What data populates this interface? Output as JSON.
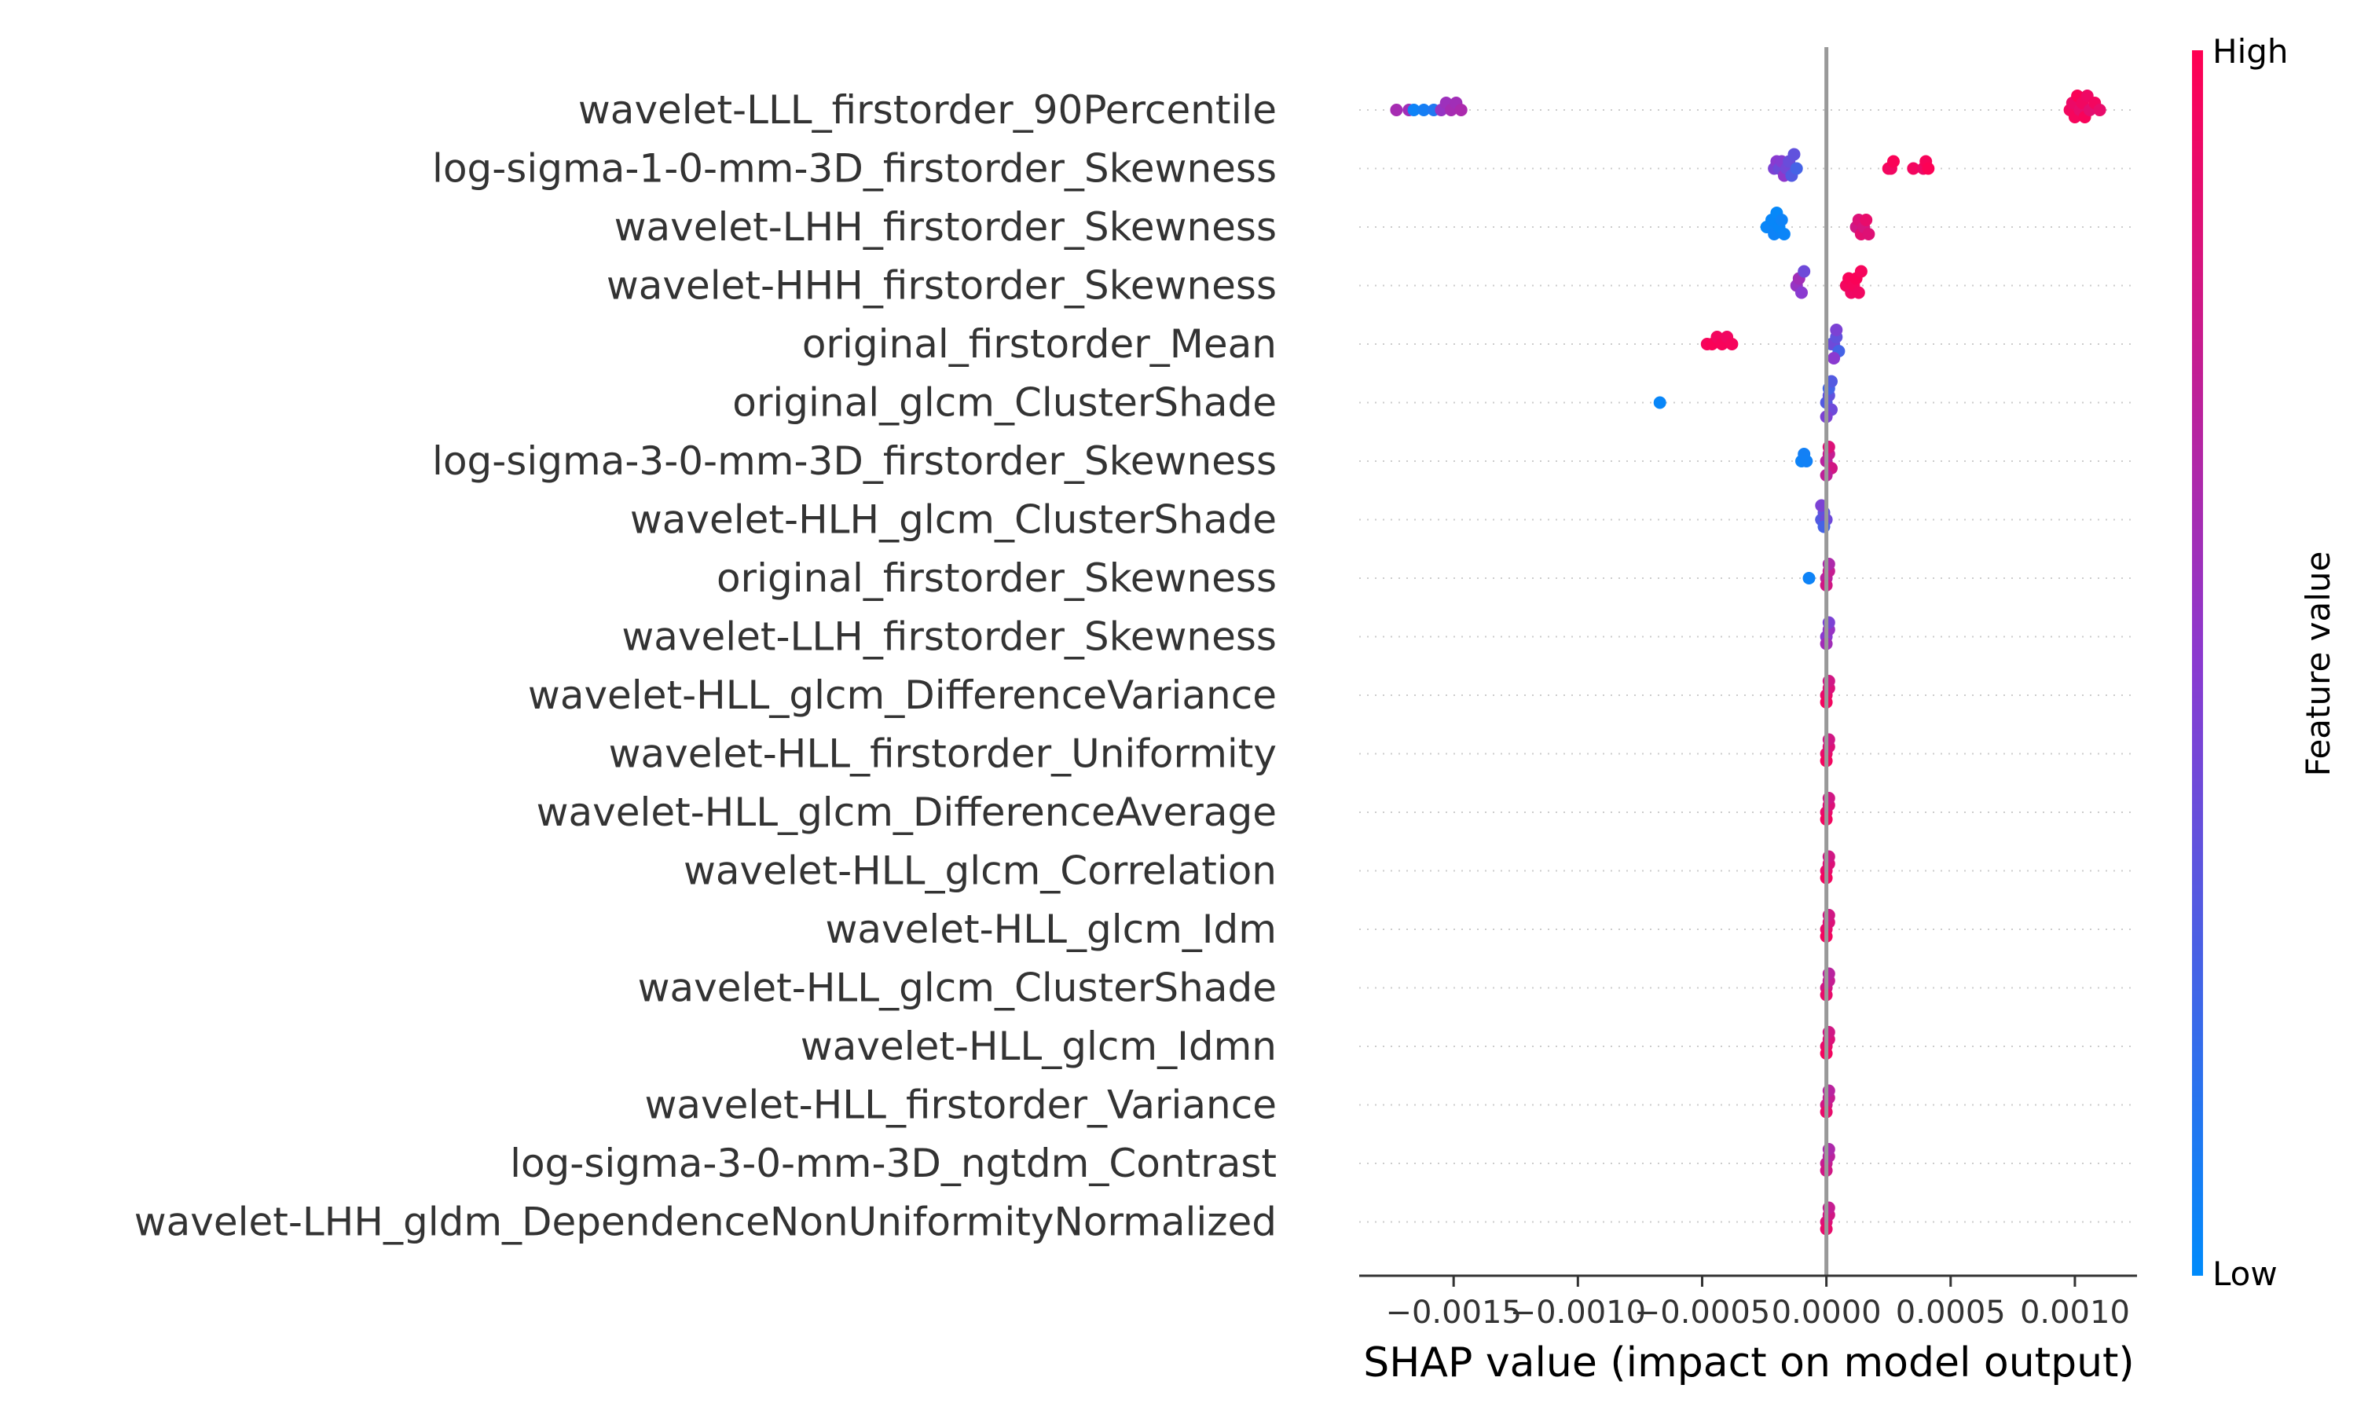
{
  "chart_data": {
    "type": "scatter",
    "subtype": "shap-beeswarm",
    "title": "",
    "xlabel": "SHAP value (impact on model output)",
    "ylabel": "",
    "xlim": [
      -0.00188,
      0.00125
    ],
    "xticks": [
      -0.0015,
      -0.001,
      -0.0005,
      0.0,
      0.0005,
      0.001
    ],
    "xtick_labels": [
      "−0.0015",
      "−0.0010",
      "−0.0005",
      "0.0000",
      "0.0005",
      "0.0010"
    ],
    "zero_line": true,
    "colorbar": {
      "label": "Feature value",
      "high_label": "High",
      "low_label": "Low",
      "low_color": "#008bfb",
      "high_color": "#ff0052"
    },
    "features": [
      {
        "name": "wavelet-LLL_firstorder_90Percentile",
        "points": [
          {
            "x": -0.00173,
            "f": 0.62
          },
          {
            "x": -0.00168,
            "f": 0.6
          },
          {
            "x": -0.00166,
            "f": 0.05
          },
          {
            "x": -0.00162,
            "f": 0.08
          },
          {
            "x": -0.00158,
            "f": 0.12
          },
          {
            "x": -0.00155,
            "f": 0.55
          },
          {
            "x": -0.00153,
            "f": 0.58
          },
          {
            "x": -0.00151,
            "f": 0.62
          },
          {
            "x": -0.00149,
            "f": 0.6
          },
          {
            "x": -0.00147,
            "f": 0.64
          },
          {
            "x": 0.00098,
            "f": 0.95
          },
          {
            "x": 0.00099,
            "f": 0.92
          },
          {
            "x": 0.001,
            "f": 0.96
          },
          {
            "x": 0.00101,
            "f": 0.98
          },
          {
            "x": 0.00102,
            "f": 0.9
          },
          {
            "x": 0.00103,
            "f": 0.94
          },
          {
            "x": 0.00104,
            "f": 0.97
          },
          {
            "x": 0.00105,
            "f": 0.93
          },
          {
            "x": 0.00106,
            "f": 0.88
          },
          {
            "x": 0.00108,
            "f": 0.95
          },
          {
            "x": 0.0011,
            "f": 0.9
          }
        ]
      },
      {
        "name": "log-sigma-1-0-mm-3D_firstorder_Skewness",
        "points": [
          {
            "x": -0.00021,
            "f": 0.45
          },
          {
            "x": -0.0002,
            "f": 0.5
          },
          {
            "x": -0.00019,
            "f": 0.4
          },
          {
            "x": -0.00018,
            "f": 0.48
          },
          {
            "x": -0.00017,
            "f": 0.52
          },
          {
            "x": -0.00016,
            "f": 0.42
          },
          {
            "x": -0.00015,
            "f": 0.38
          },
          {
            "x": -0.00014,
            "f": 0.3
          },
          {
            "x": -0.00013,
            "f": 0.35
          },
          {
            "x": -0.00012,
            "f": 0.25
          },
          {
            "x": 0.00025,
            "f": 0.96
          },
          {
            "x": 0.00026,
            "f": 0.94
          },
          {
            "x": 0.00027,
            "f": 0.98
          },
          {
            "x": 0.00035,
            "f": 0.95
          },
          {
            "x": 0.00039,
            "f": 0.92
          },
          {
            "x": 0.0004,
            "f": 0.97
          },
          {
            "x": 0.00041,
            "f": 0.99
          }
        ]
      },
      {
        "name": "wavelet-LHH_firstorder_Skewness",
        "points": [
          {
            "x": -0.00024,
            "f": 0.02
          },
          {
            "x": -0.00023,
            "f": 0.04
          },
          {
            "x": -0.00022,
            "f": 0.03
          },
          {
            "x": -0.00021,
            "f": 0.05
          },
          {
            "x": -0.0002,
            "f": 0.02
          },
          {
            "x": -0.00019,
            "f": 0.03
          },
          {
            "x": -0.00018,
            "f": 0.05
          },
          {
            "x": -0.00017,
            "f": 0.04
          },
          {
            "x": 0.00012,
            "f": 0.8
          },
          {
            "x": 0.00013,
            "f": 0.85
          },
          {
            "x": 0.00014,
            "f": 0.88
          },
          {
            "x": 0.00015,
            "f": 0.82
          },
          {
            "x": 0.00016,
            "f": 0.9
          },
          {
            "x": 0.00017,
            "f": 0.86
          }
        ]
      },
      {
        "name": "wavelet-HHH_firstorder_Skewness",
        "points": [
          {
            "x": -0.00012,
            "f": 0.55
          },
          {
            "x": -0.00011,
            "f": 0.6
          },
          {
            "x": -0.0001,
            "f": 0.5
          },
          {
            "x": -9e-05,
            "f": 0.4
          },
          {
            "x": 8e-05,
            "f": 0.95
          },
          {
            "x": 9e-05,
            "f": 0.97
          },
          {
            "x": 0.0001,
            "f": 0.93
          },
          {
            "x": 0.00011,
            "f": 0.96
          },
          {
            "x": 0.00012,
            "f": 0.98
          },
          {
            "x": 0.00013,
            "f": 0.94
          },
          {
            "x": 0.00014,
            "f": 0.96
          }
        ]
      },
      {
        "name": "original_firstorder_Mean",
        "points": [
          {
            "x": -0.00048,
            "f": 0.96
          },
          {
            "x": -0.00046,
            "f": 0.98
          },
          {
            "x": -0.00044,
            "f": 0.95
          },
          {
            "x": -0.00042,
            "f": 0.97
          },
          {
            "x": -0.0004,
            "f": 0.94
          },
          {
            "x": -0.00038,
            "f": 0.96
          },
          {
            "x": 2e-05,
            "f": 0.3
          },
          {
            "x": 3e-05,
            "f": 0.4
          },
          {
            "x": 4e-05,
            "f": 0.35
          },
          {
            "x": 5e-05,
            "f": 0.25
          },
          {
            "x": 4e-05,
            "f": 0.45
          },
          {
            "x": 3e-05,
            "f": 0.5
          }
        ]
      },
      {
        "name": "original_glcm_ClusterShade",
        "points": [
          {
            "x": -0.00067,
            "f": 0.03
          },
          {
            "x": 0.0,
            "f": 0.3
          },
          {
            "x": 1e-05,
            "f": 0.35
          },
          {
            "x": 2e-05,
            "f": 0.4
          },
          {
            "x": 1e-05,
            "f": 0.25
          },
          {
            "x": 0.0,
            "f": 0.45
          },
          {
            "x": 2e-05,
            "f": 0.3
          }
        ]
      },
      {
        "name": "log-sigma-3-0-mm-3D_firstorder_Skewness",
        "points": [
          {
            "x": -0.0001,
            "f": 0.05
          },
          {
            "x": -9e-05,
            "f": 0.07
          },
          {
            "x": -8e-05,
            "f": 0.06
          },
          {
            "x": 0.0,
            "f": 0.7
          },
          {
            "x": 1e-05,
            "f": 0.75
          },
          {
            "x": 2e-05,
            "f": 0.8
          },
          {
            "x": 1e-05,
            "f": 0.85
          },
          {
            "x": 0.0,
            "f": 0.72
          }
        ]
      },
      {
        "name": "wavelet-HLH_glcm_ClusterShade",
        "points": [
          {
            "x": -2e-05,
            "f": 0.3
          },
          {
            "x": -1e-05,
            "f": 0.35
          },
          {
            "x": 0.0,
            "f": 0.4
          },
          {
            "x": -1e-05,
            "f": 0.25
          },
          {
            "x": -2e-05,
            "f": 0.45
          }
        ]
      },
      {
        "name": "original_firstorder_Skewness",
        "points": [
          {
            "x": -7e-05,
            "f": 0.05
          },
          {
            "x": 0.0,
            "f": 0.7
          },
          {
            "x": 1e-05,
            "f": 0.75
          },
          {
            "x": 0.0,
            "f": 0.8
          },
          {
            "x": 1e-05,
            "f": 0.65
          }
        ]
      },
      {
        "name": "wavelet-LLH_firstorder_Skewness",
        "points": [
          {
            "x": 0.0,
            "f": 0.5
          },
          {
            "x": 1e-05,
            "f": 0.55
          },
          {
            "x": 0.0,
            "f": 0.6
          },
          {
            "x": 1e-05,
            "f": 0.45
          }
        ]
      },
      {
        "name": "wavelet-HLL_glcm_DifferenceVariance",
        "points": [
          {
            "x": 0.0,
            "f": 0.9
          },
          {
            "x": 1e-05,
            "f": 0.85
          },
          {
            "x": 0.0,
            "f": 0.95
          },
          {
            "x": 1e-05,
            "f": 0.8
          }
        ]
      },
      {
        "name": "wavelet-HLL_firstorder_Uniformity",
        "points": [
          {
            "x": 0.0,
            "f": 0.9
          },
          {
            "x": 1e-05,
            "f": 0.85
          },
          {
            "x": 0.0,
            "f": 0.95
          },
          {
            "x": 1e-05,
            "f": 0.8
          }
        ]
      },
      {
        "name": "wavelet-HLL_glcm_DifferenceAverage",
        "points": [
          {
            "x": 0.0,
            "f": 0.9
          },
          {
            "x": 1e-05,
            "f": 0.85
          },
          {
            "x": 0.0,
            "f": 0.95
          },
          {
            "x": 1e-05,
            "f": 0.8
          }
        ]
      },
      {
        "name": "wavelet-HLL_glcm_Correlation",
        "points": [
          {
            "x": 0.0,
            "f": 0.9
          },
          {
            "x": 1e-05,
            "f": 0.85
          },
          {
            "x": 0.0,
            "f": 0.95
          },
          {
            "x": 1e-05,
            "f": 0.8
          }
        ]
      },
      {
        "name": "wavelet-HLL_glcm_Idm",
        "points": [
          {
            "x": 0.0,
            "f": 0.9
          },
          {
            "x": 1e-05,
            "f": 0.85
          },
          {
            "x": 0.0,
            "f": 0.95
          },
          {
            "x": 1e-05,
            "f": 0.8
          }
        ]
      },
      {
        "name": "wavelet-HLL_glcm_ClusterShade",
        "points": [
          {
            "x": 0.0,
            "f": 0.8
          },
          {
            "x": 1e-05,
            "f": 0.75
          },
          {
            "x": 0.0,
            "f": 0.9
          },
          {
            "x": 1e-05,
            "f": 0.7
          }
        ]
      },
      {
        "name": "wavelet-HLL_glcm_Idmn",
        "points": [
          {
            "x": 0.0,
            "f": 0.9
          },
          {
            "x": 1e-05,
            "f": 0.85
          },
          {
            "x": 0.0,
            "f": 0.95
          },
          {
            "x": 1e-05,
            "f": 0.8
          }
        ]
      },
      {
        "name": "wavelet-HLL_firstorder_Variance",
        "points": [
          {
            "x": 0.0,
            "f": 0.8
          },
          {
            "x": 1e-05,
            "f": 0.75
          },
          {
            "x": 0.0,
            "f": 0.9
          },
          {
            "x": 1e-05,
            "f": 0.7
          }
        ]
      },
      {
        "name": "log-sigma-3-0-mm-3D_ngtdm_Contrast",
        "points": [
          {
            "x": 0.0,
            "f": 0.75
          },
          {
            "x": 1e-05,
            "f": 0.7
          },
          {
            "x": 0.0,
            "f": 0.8
          },
          {
            "x": 1e-05,
            "f": 0.65
          }
        ]
      },
      {
        "name": "wavelet-LHH_gldm_DependenceNonUniformityNormalized",
        "points": [
          {
            "x": 0.0,
            "f": 0.85
          },
          {
            "x": 1e-05,
            "f": 0.8
          },
          {
            "x": 0.0,
            "f": 0.9
          },
          {
            "x": 1e-05,
            "f": 0.75
          }
        ]
      }
    ]
  }
}
